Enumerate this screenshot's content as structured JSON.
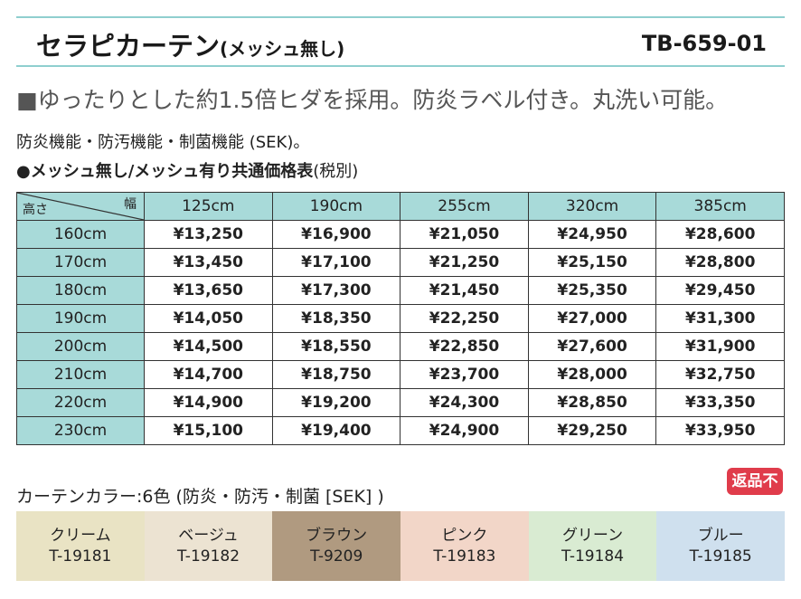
{
  "header": {
    "title": "セラピカーテン",
    "subtitle": "(メッシュ無し)",
    "product_code": "TB-659-01"
  },
  "headline": "■ゆったりとした約1.5倍ヒダを採用。防炎ラベル付き。丸洗い可能。",
  "features": "防炎機能・防汚機能・制菌機能 (SEK)。",
  "price_heading": "●メッシュ無し/メッシュ有り共通価格表",
  "price_note": "(税別)",
  "table": {
    "corner_width": "幅",
    "corner_height": "高さ",
    "columns": [
      "125cm",
      "190cm",
      "255cm",
      "320cm",
      "385cm"
    ],
    "rows": [
      {
        "height": "160cm",
        "prices": [
          "¥13,250",
          "¥16,900",
          "¥21,050",
          "¥24,950",
          "¥28,600"
        ]
      },
      {
        "height": "170cm",
        "prices": [
          "¥13,450",
          "¥17,100",
          "¥21,250",
          "¥25,150",
          "¥28,800"
        ]
      },
      {
        "height": "180cm",
        "prices": [
          "¥13,650",
          "¥17,300",
          "¥21,450",
          "¥25,350",
          "¥29,450"
        ]
      },
      {
        "height": "190cm",
        "prices": [
          "¥14,050",
          "¥18,350",
          "¥22,250",
          "¥27,000",
          "¥31,300"
        ]
      },
      {
        "height": "200cm",
        "prices": [
          "¥14,500",
          "¥18,550",
          "¥22,850",
          "¥27,600",
          "¥31,900"
        ]
      },
      {
        "height": "210cm",
        "prices": [
          "¥14,700",
          "¥18,750",
          "¥23,700",
          "¥28,000",
          "¥32,750"
        ]
      },
      {
        "height": "220cm",
        "prices": [
          "¥14,900",
          "¥19,200",
          "¥24,300",
          "¥28,850",
          "¥33,350"
        ]
      },
      {
        "height": "230cm",
        "prices": [
          "¥15,100",
          "¥19,400",
          "¥24,900",
          "¥29,250",
          "¥33,950"
        ]
      }
    ]
  },
  "colors_label": "カーテンカラー:6色 (防炎・防汚・制菌 [SEK] )",
  "badge": "返品不可",
  "swatches": [
    {
      "name": "クリーム",
      "code": "T-19181",
      "color": "#e9e3c4"
    },
    {
      "name": "ベージュ",
      "code": "T-19182",
      "color": "#ece3d2"
    },
    {
      "name": "ブラウン",
      "code": "T-9209",
      "color": "#b09a80"
    },
    {
      "name": "ピンク",
      "code": "T-19183",
      "color": "#f2d6c8"
    },
    {
      "name": "グリーン",
      "code": "T-19184",
      "color": "#d9ebd2"
    },
    {
      "name": "ブルー",
      "code": "T-19185",
      "color": "#cfe0ee"
    }
  ]
}
